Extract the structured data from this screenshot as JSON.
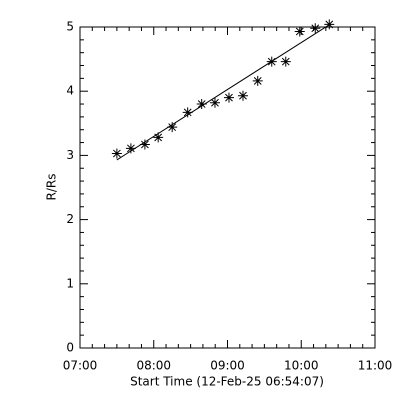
{
  "chart_data": {
    "type": "scatter",
    "xlabel": "Start Time (12-Feb-25 06:54:07)",
    "ylabel": "R/Rs",
    "x": [
      7.5,
      7.69,
      7.88,
      8.06,
      8.25,
      8.46,
      8.65,
      8.83,
      9.02,
      9.21,
      9.41,
      9.6,
      9.79,
      9.98,
      10.19,
      10.38
    ],
    "series": [
      {
        "values": [
          3.03,
          3.11,
          3.17,
          3.28,
          3.44,
          3.67,
          3.8,
          3.82,
          3.9,
          3.93,
          4.16,
          4.46,
          4.46,
          4.93,
          4.98,
          5.04
        ],
        "color": "#000000"
      }
    ],
    "fit": {
      "x": [
        7.5,
        10.4
      ],
      "values": [
        2.93,
        5.05
      ],
      "color": "#000000"
    },
    "xlim": [
      7,
      11
    ],
    "ylim": [
      0,
      5
    ],
    "xticks": [
      {
        "value": 7,
        "label": "07:00"
      },
      {
        "value": 8,
        "label": "08:00"
      },
      {
        "value": 9,
        "label": "09:00"
      },
      {
        "value": 10,
        "label": "10:00"
      },
      {
        "value": 11,
        "label": "11:00"
      }
    ],
    "yticks": [
      0,
      1,
      2,
      3,
      4,
      5
    ]
  }
}
